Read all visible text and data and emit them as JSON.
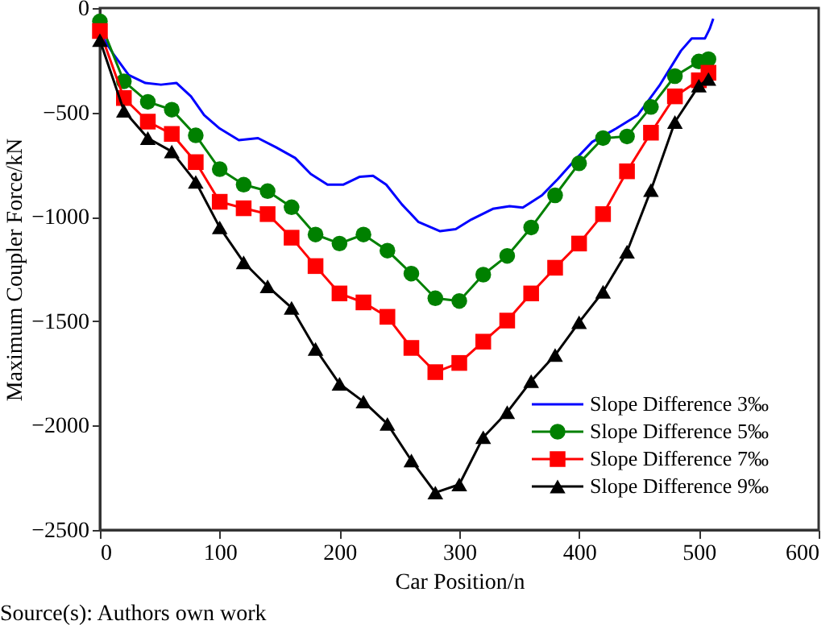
{
  "chart_data": {
    "type": "line",
    "xlabel": "Car Position/n",
    "ylabel": "Maximum Coupler Force/kN",
    "xlim": [
      0,
      600
    ],
    "xticks": [
      0,
      100,
      200,
      300,
      400,
      500,
      600
    ],
    "ylim": [
      -2500,
      0
    ],
    "yticks": [
      -2500,
      -2000,
      -1500,
      -1000,
      -500,
      0
    ],
    "grid": false,
    "legend": "bottom right",
    "line_style": "solid",
    "annotations": [
      "Source(s): Authors own work"
    ],
    "series": [
      {
        "name": "Slope Difference 3‰",
        "color": "#0000ff",
        "marker": "none",
        "x": [
          0,
          1,
          11,
          24,
          38,
          51,
          64,
          76,
          87,
          100,
          116,
          132,
          147,
          163,
          176,
          190,
          203,
          217,
          228,
          239,
          252,
          266,
          284,
          297,
          310,
          328,
          342,
          353,
          369,
          382,
          396,
          411,
          431,
          449,
          467,
          485,
          494,
          505,
          509,
          512
        ],
        "values": [
          -64,
          -128,
          -218,
          -321,
          -359,
          -367,
          -359,
          -423,
          -513,
          -577,
          -633,
          -623,
          -667,
          -718,
          -795,
          -846,
          -846,
          -808,
          -803,
          -846,
          -940,
          -1025,
          -1069,
          -1059,
          -1013,
          -962,
          -949,
          -956,
          -897,
          -821,
          -731,
          -641,
          -577,
          -513,
          -372,
          -205,
          -146,
          -146,
          -100,
          -51
        ]
      },
      {
        "name": "Slope Difference 5‰",
        "color": "#008000",
        "marker": "circle",
        "x": [
          0,
          20,
          40,
          60,
          80,
          100,
          120,
          140,
          160,
          180,
          200,
          220,
          240,
          260,
          280,
          300,
          320,
          340,
          360,
          380,
          400,
          420,
          440,
          460,
          480,
          500,
          508
        ],
        "values": [
          -64,
          -351,
          -449,
          -487,
          -610,
          -772,
          -846,
          -877,
          -954,
          -1085,
          -1128,
          -1085,
          -1162,
          -1272,
          -1390,
          -1403,
          -1277,
          -1187,
          -1051,
          -897,
          -744,
          -623,
          -615,
          -474,
          -326,
          -256,
          -245
        ]
      },
      {
        "name": "Slope Difference 7‰",
        "color": "#ff0000",
        "marker": "square",
        "x": [
          0,
          20,
          40,
          60,
          80,
          100,
          120,
          140,
          160,
          180,
          200,
          220,
          240,
          260,
          280,
          300,
          320,
          340,
          360,
          380,
          400,
          420,
          440,
          460,
          480,
          500,
          508
        ],
        "values": [
          -110,
          -431,
          -544,
          -603,
          -738,
          -928,
          -959,
          -987,
          -1100,
          -1236,
          -1367,
          -1410,
          -1479,
          -1628,
          -1744,
          -1700,
          -1598,
          -1497,
          -1367,
          -1244,
          -1128,
          -987,
          -782,
          -597,
          -423,
          -346,
          -310
        ]
      },
      {
        "name": "Slope Difference 9‰",
        "color": "#000000",
        "marker": "triangle",
        "x": [
          0,
          20,
          40,
          60,
          80,
          100,
          120,
          140,
          160,
          180,
          200,
          220,
          240,
          260,
          280,
          300,
          320,
          340,
          360,
          380,
          400,
          420,
          440,
          460,
          480,
          500,
          508
        ],
        "values": [
          -154,
          -492,
          -623,
          -687,
          -833,
          -1051,
          -1218,
          -1333,
          -1436,
          -1633,
          -1800,
          -1885,
          -1992,
          -2167,
          -2321,
          -2282,
          -2056,
          -1936,
          -1787,
          -1662,
          -1505,
          -1359,
          -1167,
          -872,
          -546,
          -372,
          -340
        ]
      }
    ]
  }
}
